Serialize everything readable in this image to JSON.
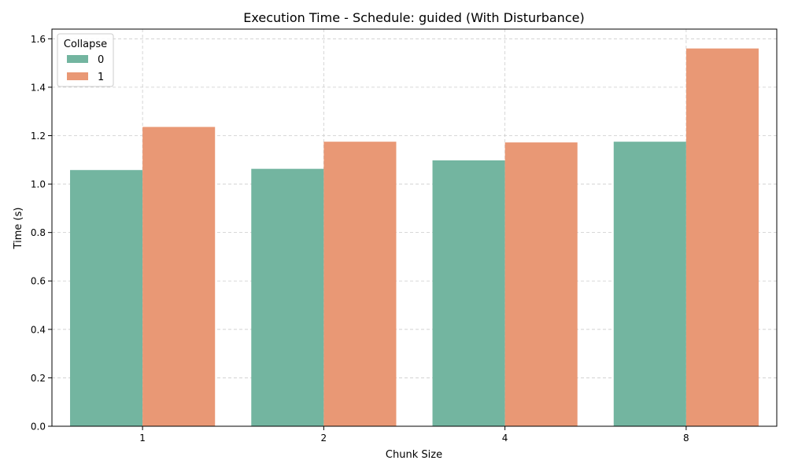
{
  "chart_data": {
    "type": "bar",
    "title": "Execution Time - Schedule: guided (With Disturbance)",
    "xlabel": "Chunk Size",
    "ylabel": "Time (s)",
    "categories": [
      "1",
      "2",
      "4",
      "8"
    ],
    "ylim": [
      0,
      1.64
    ],
    "yticks": [
      0.0,
      0.2,
      0.4,
      0.6,
      0.8,
      1.0,
      1.2,
      1.4,
      1.6
    ],
    "ytick_labels": [
      "0.0",
      "0.2",
      "0.4",
      "0.6",
      "0.8",
      "1.0",
      "1.2",
      "1.4",
      "1.6"
    ],
    "grid": true,
    "legend": {
      "title": "Collapse",
      "placement": "top-left"
    },
    "series": [
      {
        "name": "0",
        "color": "#73b5a0",
        "values": [
          1.058,
          1.063,
          1.098,
          1.175
        ]
      },
      {
        "name": "1",
        "color": "#e99875",
        "values": [
          1.236,
          1.175,
          1.172,
          1.56
        ]
      }
    ]
  }
}
